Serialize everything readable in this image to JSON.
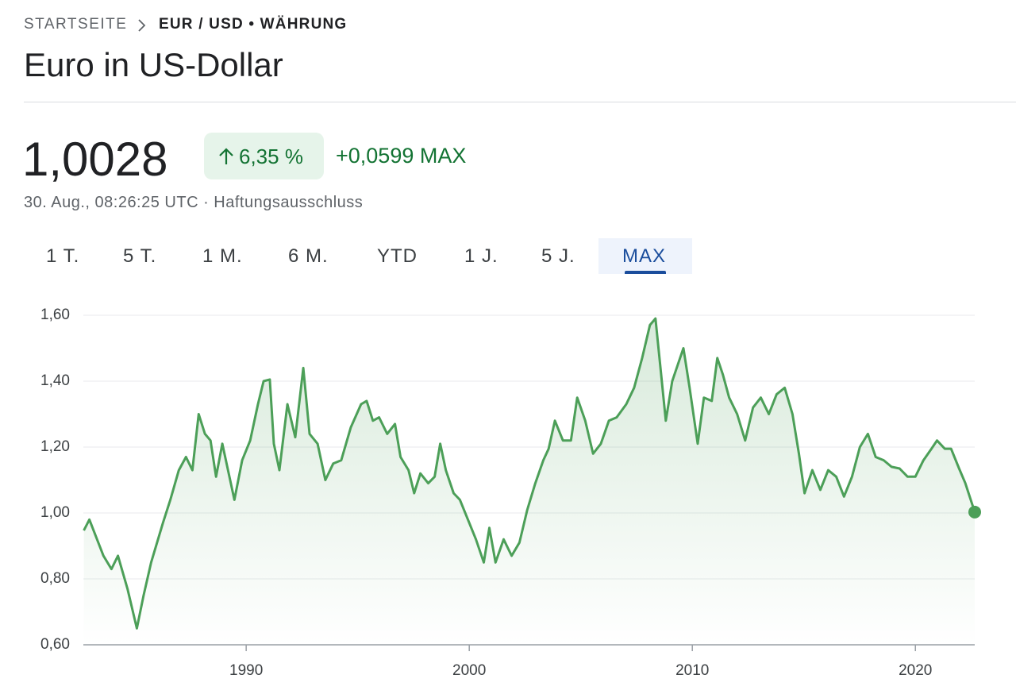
{
  "breadcrumb": {
    "home": "STARTSEITE",
    "current": "EUR / USD • WÄHRUNG"
  },
  "header": {
    "title": "Euro in US-Dollar"
  },
  "quote": {
    "price": "1,0028",
    "change_percent": "6,35 %",
    "change": "+0,0599 MAX",
    "timestamp": "30. Aug., 08:26:25 UTC · Haftungsausschluss"
  },
  "tabs": [
    "1 T.",
    "5 T.",
    "1 M.",
    "6 M.",
    "YTD",
    "1 J.",
    "5 J.",
    "MAX"
  ],
  "chart_data": {
    "type": "line",
    "color": "#4c9f58",
    "grid": true,
    "x": [
      1982.72,
      1982.97,
      1983.6,
      1983.96,
      1984.25,
      1984.68,
      1985.1,
      1985.4,
      1985.74,
      1986.27,
      1986.6,
      1986.98,
      1987.3,
      1987.59,
      1987.87,
      1988.15,
      1988.4,
      1988.65,
      1988.93,
      1989.47,
      1989.82,
      1990.18,
      1990.53,
      1990.78,
      1991.06,
      1991.24,
      1991.49,
      1991.85,
      1992.2,
      1992.56,
      1992.84,
      1993.2,
      1993.55,
      1993.9,
      1994.26,
      1994.69,
      1995.15,
      1995.4,
      1995.68,
      1995.96,
      1996.32,
      1996.67,
      1996.92,
      1997.28,
      1997.53,
      1997.81,
      1998.16,
      1998.45,
      1998.7,
      1998.95,
      1999.3,
      1999.58,
      1999.94,
      2000.3,
      2000.65,
      2000.9,
      2001.18,
      2001.54,
      2001.9,
      2002.25,
      2002.6,
      2002.96,
      2003.32,
      2003.56,
      2003.84,
      2004.2,
      2004.56,
      2004.84,
      2005.2,
      2005.55,
      2005.9,
      2006.26,
      2006.61,
      2007.04,
      2007.39,
      2007.75,
      2008.1,
      2008.35,
      2008.56,
      2008.81,
      2009.1,
      2009.35,
      2009.6,
      2009.88,
      2010.24,
      2010.52,
      2010.87,
      2011.12,
      2011.37,
      2011.65,
      2012.01,
      2012.37,
      2012.72,
      2013.07,
      2013.43,
      2013.78,
      2014.14,
      2014.49,
      2014.78,
      2015.03,
      2015.38,
      2015.74,
      2016.09,
      2016.45,
      2016.8,
      2017.16,
      2017.51,
      2017.87,
      2018.22,
      2018.58,
      2018.93,
      2019.29,
      2019.65,
      2020.0,
      2020.36,
      2020.72,
      2020.97,
      2021.32,
      2021.6,
      2021.96,
      2022.24,
      2022.66
    ],
    "values": [
      0.947,
      0.98,
      0.87,
      0.83,
      0.87,
      0.77,
      0.65,
      0.75,
      0.85,
      0.97,
      1.04,
      1.13,
      1.17,
      1.13,
      1.3,
      1.24,
      1.22,
      1.11,
      1.21,
      1.04,
      1.16,
      1.22,
      1.33,
      1.4,
      1.405,
      1.21,
      1.13,
      1.33,
      1.23,
      1.44,
      1.24,
      1.21,
      1.1,
      1.15,
      1.16,
      1.26,
      1.33,
      1.34,
      1.28,
      1.29,
      1.24,
      1.27,
      1.17,
      1.13,
      1.06,
      1.12,
      1.09,
      1.11,
      1.21,
      1.13,
      1.06,
      1.04,
      0.98,
      0.92,
      0.85,
      0.955,
      0.85,
      0.92,
      0.87,
      0.91,
      1.01,
      1.09,
      1.16,
      1.195,
      1.28,
      1.22,
      1.22,
      1.35,
      1.28,
      1.18,
      1.21,
      1.28,
      1.29,
      1.33,
      1.38,
      1.47,
      1.57,
      1.59,
      1.45,
      1.28,
      1.4,
      1.45,
      1.5,
      1.38,
      1.21,
      1.35,
      1.34,
      1.47,
      1.42,
      1.35,
      1.3,
      1.22,
      1.32,
      1.35,
      1.3,
      1.36,
      1.38,
      1.3,
      1.18,
      1.06,
      1.13,
      1.07,
      1.13,
      1.11,
      1.05,
      1.11,
      1.2,
      1.24,
      1.17,
      1.16,
      1.14,
      1.135,
      1.11,
      1.11,
      1.16,
      1.195,
      1.22,
      1.195,
      1.195,
      1.135,
      1.09,
      1.0028
    ],
    "xlim": [
      1982.7,
      2022.66
    ],
    "xticks": [
      1990,
      2000,
      2010,
      2020
    ],
    "ylim": [
      0.6,
      1.6
    ],
    "yticks": [
      {
        "value": 0.6,
        "label": "0,60"
      },
      {
        "value": 0.8,
        "label": "0,80"
      },
      {
        "value": 1.0,
        "label": "1,00"
      },
      {
        "value": 1.2,
        "label": "1,20"
      },
      {
        "value": 1.4,
        "label": "1,40"
      },
      {
        "value": 1.6,
        "label": "1,60"
      }
    ]
  }
}
